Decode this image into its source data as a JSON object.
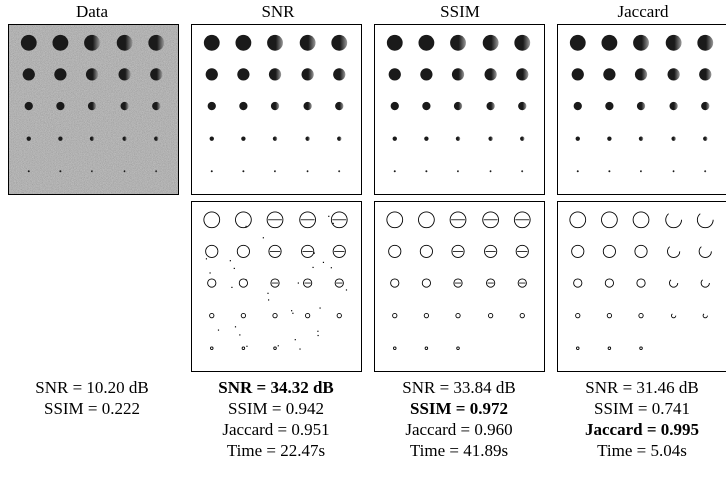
{
  "columns": [
    {
      "title": "Data",
      "has_edges": false,
      "stats": [
        {
          "text": "SNR = 10.20 dB",
          "bold": false
        },
        {
          "text": "SSIM = 0.222",
          "bold": false
        }
      ]
    },
    {
      "title": "SNR",
      "has_edges": true,
      "stats": [
        {
          "text": "SNR = 34.32 dB",
          "bold": true
        },
        {
          "text": "SSIM = 0.942",
          "bold": false
        },
        {
          "text": "Jaccard = 0.951",
          "bold": false
        },
        {
          "text": "Time = 22.47s",
          "bold": false
        }
      ]
    },
    {
      "title": "SSIM",
      "has_edges": true,
      "stats": [
        {
          "text": "SNR = 33.84 dB",
          "bold": false
        },
        {
          "text": "SSIM = 0.972",
          "bold": true
        },
        {
          "text": "Jaccard = 0.960",
          "bold": false
        },
        {
          "text": "Time = 41.89s",
          "bold": false
        }
      ]
    },
    {
      "title": "Jaccard",
      "has_edges": true,
      "stats": [
        {
          "text": "SNR = 31.46 dB",
          "bold": false
        },
        {
          "text": "SSIM = 0.741",
          "bold": false
        },
        {
          "text": "Jaccard = 0.995",
          "bold": true
        },
        {
          "text": "Time = 5.04s",
          "bold": false
        }
      ]
    }
  ],
  "colors": {
    "noise_background": "#a6a6a6",
    "spot_dark": "#1a1a1a",
    "spot_light": "#9a9a9a",
    "edge_stroke": "#000000"
  }
}
